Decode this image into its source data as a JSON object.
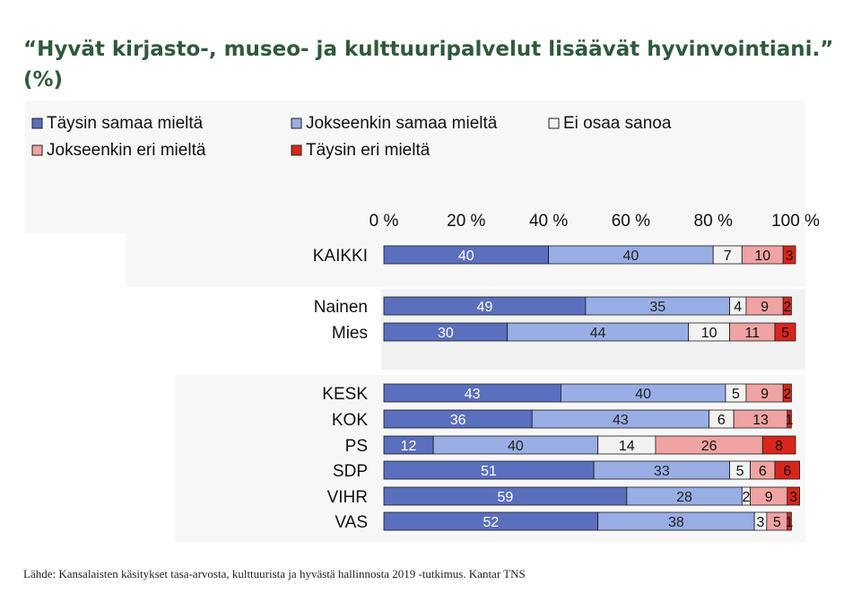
{
  "title": "“Hyvät kirjasto-, museo- ja kulttuuripalvelut lisäävät hyvinvointiani.” (%)",
  "source": "Lähde: Kansalaisten käsitykset tasa-arvosta, kulttuurista ja hyvästä hallinnosta 2019 -tutkimus. Kantar TNS",
  "chart_data": {
    "type": "bar",
    "orientation": "horizontal",
    "stacked": true,
    "title": "“Hyvät kirjasto-, museo- ja kulttuuripalvelut lisäävät hyvinvointiani.” (%)",
    "xlim": [
      0,
      100
    ],
    "x_tick_labels": [
      "0 %",
      "20 %",
      "40 %",
      "60 %",
      "80 %",
      "100 %"
    ],
    "x_ticks": [
      0,
      20,
      40,
      60,
      80,
      100
    ],
    "legend_position": "top",
    "categories": [
      "KAIKKI",
      "Nainen",
      "Mies",
      "KESK",
      "KOK",
      "PS",
      "SDP",
      "VIHR",
      "VAS"
    ],
    "series": [
      {
        "name": "Täysin samaa mieltä",
        "color": "#5b6fbf",
        "values": [
          40,
          49,
          30,
          43,
          36,
          12,
          51,
          59,
          52
        ]
      },
      {
        "name": "Jokseenkin samaa mieltä",
        "color": "#99aee5",
        "values": [
          40,
          35,
          44,
          40,
          43,
          40,
          33,
          28,
          38
        ]
      },
      {
        "name": "Ei osaa sanoa",
        "color": "#f2f2f2",
        "values": [
          7,
          4,
          10,
          5,
          6,
          14,
          5,
          2,
          3
        ]
      },
      {
        "name": "Jokseenkin eri mieltä",
        "color": "#f0a3a3",
        "values": [
          10,
          9,
          11,
          9,
          13,
          26,
          6,
          9,
          5
        ]
      },
      {
        "name": "Täysin eri mieltä",
        "color": "#d9261c",
        "values": [
          3,
          2,
          5,
          2,
          1,
          8,
          6,
          3,
          1
        ]
      }
    ]
  }
}
